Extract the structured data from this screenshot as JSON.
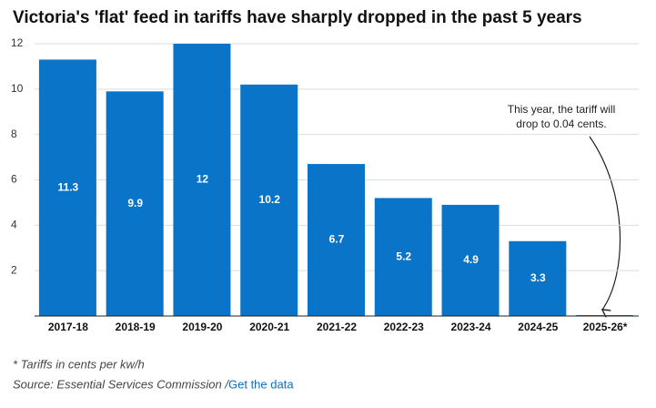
{
  "chart_data": {
    "type": "bar",
    "title": "Victoria's 'flat' feed in tariffs have sharply dropped in the past 5 years",
    "categories": [
      "2017-18",
      "2018-19",
      "2019-20",
      "2020-21",
      "2021-22",
      "2022-23",
      "2023-24",
      "2024-25",
      "2025-26*"
    ],
    "values": [
      11.3,
      9.9,
      12,
      10.2,
      6.7,
      5.2,
      4.9,
      3.3,
      0.04
    ],
    "color": "#0a74c8",
    "ylim": [
      0,
      12
    ],
    "yticks": [
      2,
      4,
      6,
      8,
      10,
      12
    ],
    "grid": true,
    "annotation": [
      "This year, the tariff will",
      "drop to 0.04 cents."
    ],
    "note": "* Tariffs in cents per kw/h",
    "source": "Source: Essential Services Commission /",
    "link": "Get the data"
  }
}
